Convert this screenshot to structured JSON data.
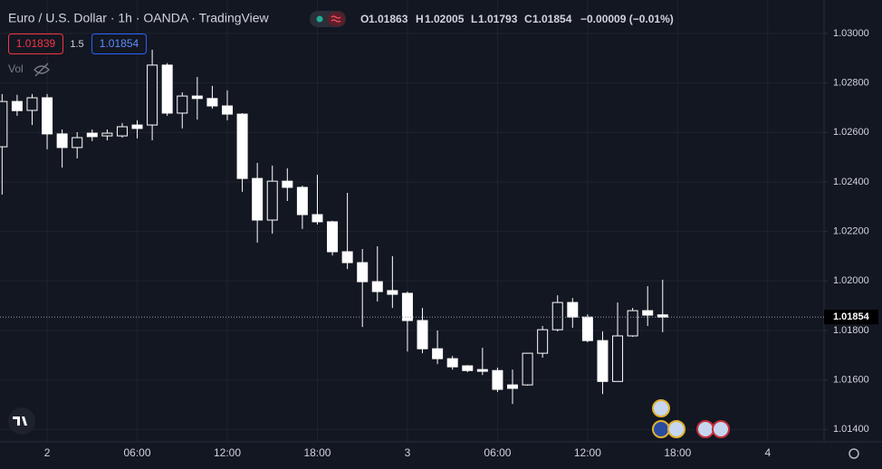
{
  "chart_data": {
    "type": "candlestick",
    "title": "Euro / U.S. Dollar · 1h · OANDA · TradingView",
    "ohlc_legend": {
      "open_label": "O",
      "open": 1.01863,
      "high_label": "H",
      "high": 1.02005,
      "low_label": "L",
      "low": 1.01793,
      "close_label": "C",
      "close": 1.01854,
      "change": "−0.00009 (−0.01%)"
    },
    "trade": {
      "sell": 1.01839,
      "spread": 1.5,
      "buy": 1.01854
    },
    "volume_label": "Vol",
    "last_price": 1.01854,
    "x": [
      -3,
      -2,
      -1,
      0,
      1,
      2,
      3,
      4,
      5,
      6,
      7,
      8,
      9,
      10,
      11,
      12,
      13,
      14,
      15,
      16,
      17,
      18,
      19,
      20,
      21,
      22,
      23,
      24,
      25,
      26,
      27,
      28,
      29,
      30,
      31,
      32,
      33,
      34,
      35,
      36,
      37,
      38,
      39,
      40,
      41
    ],
    "open": [
      1.02542,
      1.02725,
      1.02689,
      1.0274,
      1.02594,
      1.02539,
      1.02597,
      1.02586,
      1.02586,
      1.0263,
      1.0263,
      1.02872,
      1.02678,
      1.02747,
      1.02737,
      1.02707,
      1.02674,
      1.02414,
      1.02246,
      1.02403,
      1.02378,
      1.02268,
      1.02239,
      1.02118,
      1.02074,
      1.01997,
      1.01961,
      1.0195,
      1.0184,
      1.01726,
      1.01686,
      1.01657,
      1.01642,
      1.01638,
      1.0158,
      1.0158,
      1.01708,
      1.01803,
      1.01913,
      1.01854,
      1.01759,
      1.01594,
      1.01778,
      1.0188,
      1.01863
    ],
    "high": [
      1.02755,
      1.02752,
      1.02755,
      1.02755,
      1.02612,
      1.02601,
      1.02612,
      1.02612,
      1.02638,
      1.02649,
      1.02934,
      1.0288,
      1.02762,
      1.02824,
      1.02788,
      1.0277,
      1.02678,
      1.02477,
      1.02466,
      1.02455,
      1.02385,
      1.02429,
      1.02243,
      1.02356,
      1.02129,
      1.0214,
      1.021,
      1.01957,
      1.01891,
      1.018,
      1.01697,
      1.0166,
      1.0173,
      1.0165,
      1.01642,
      1.01708,
      1.01818,
      1.01942,
      1.01931,
      1.01865,
      1.01796,
      1.01913,
      1.01891,
      1.01979,
      1.02005
    ],
    "low": [
      1.02349,
      1.02667,
      1.0263,
      1.02532,
      1.02458,
      1.02495,
      1.02565,
      1.02568,
      1.02579,
      1.02576,
      1.02568,
      1.02667,
      1.02616,
      1.02652,
      1.02696,
      1.02649,
      1.0236,
      1.02155,
      1.02191,
      1.02323,
      1.0221,
      1.02228,
      1.02103,
      1.02048,
      1.01814,
      1.01917,
      1.01891,
      1.01715,
      1.01708,
      1.01664,
      1.01642,
      1.01631,
      1.0162,
      1.01551,
      1.01503,
      1.01577,
      1.0169,
      1.01796,
      1.01811,
      1.01752,
      1.01543,
      1.01594,
      1.01774,
      1.01818,
      1.01793
    ],
    "close": [
      1.02725,
      1.02688,
      1.0274,
      1.02594,
      1.02539,
      1.02579,
      1.02583,
      1.02597,
      1.02623,
      1.02616,
      1.02872,
      1.02678,
      1.02747,
      1.02737,
      1.02707,
      1.02674,
      1.02414,
      1.02246,
      1.02403,
      1.02378,
      1.02268,
      1.02239,
      1.02118,
      1.02074,
      1.01997,
      1.01957,
      1.01946,
      1.0184,
      1.01726,
      1.01686,
      1.01653,
      1.01638,
      1.01635,
      1.01562,
      1.01566,
      1.01708,
      1.01803,
      1.01913,
      1.01854,
      1.01759,
      1.01594,
      1.01778,
      1.0188,
      1.01862,
      1.01854
    ],
    "up_color": "#131722",
    "down_color": "#ffffff",
    "wick_color": "#ffffff",
    "xlim": [
      -3.14,
      51.75
    ],
    "xticks": [
      {
        "value": 0,
        "label": "2"
      },
      {
        "value": 6,
        "label": "06:00"
      },
      {
        "value": 12,
        "label": "12:00"
      },
      {
        "value": 18,
        "label": "18:00"
      },
      {
        "value": 24,
        "label": "3"
      },
      {
        "value": 30,
        "label": "06:00"
      },
      {
        "value": 36,
        "label": "12:00"
      },
      {
        "value": 42,
        "label": "18:00"
      },
      {
        "value": 48,
        "label": "4"
      }
    ],
    "ylim": [
      1.0135,
      1.03135
    ],
    "yticks": [
      {
        "value": 1.03,
        "label": "1.03000"
      },
      {
        "value": 1.028,
        "label": "1.02800"
      },
      {
        "value": 1.026,
        "label": "1.02600"
      },
      {
        "value": 1.024,
        "label": "1.02400"
      },
      {
        "value": 1.022,
        "label": "1.02200"
      },
      {
        "value": 1.02,
        "label": "1.02000"
      },
      {
        "value": 1.018,
        "label": "1.01800"
      },
      {
        "value": 1.016,
        "label": "1.01600"
      },
      {
        "value": 1.014,
        "label": "1.01400"
      }
    ],
    "grid": true
  }
}
